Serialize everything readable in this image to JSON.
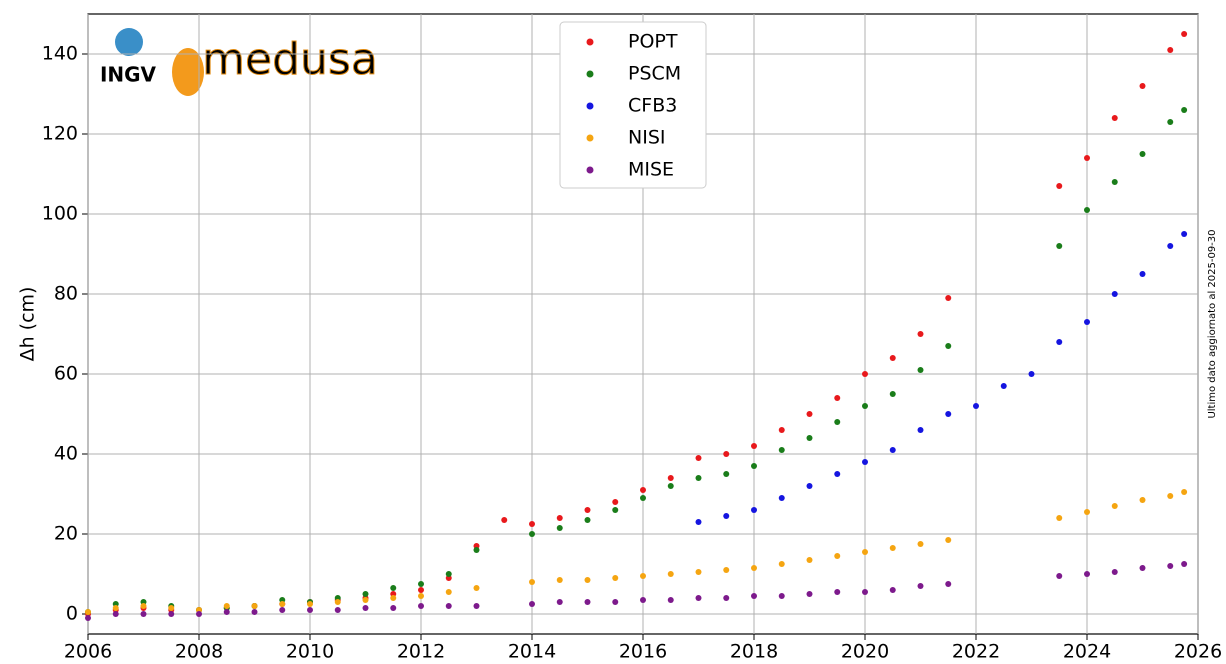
{
  "chart_data": {
    "type": "scatter",
    "ylabel": "Δh (cm)",
    "annotation": "Ultimo dato aggiornato al 2025-09-30",
    "logo_texts": [
      "INGV",
      "medusa"
    ],
    "xlim": [
      2006,
      2026
    ],
    "xticks": [
      2006,
      2008,
      2010,
      2012,
      2014,
      2016,
      2018,
      2020,
      2022,
      2024,
      2026
    ],
    "ylim": [
      -5,
      150
    ],
    "yticks": [
      0,
      20,
      40,
      60,
      80,
      100,
      120,
      140
    ],
    "grid": true,
    "legend": "upper center",
    "x": [
      2006,
      2006.5,
      2007,
      2007.5,
      2008,
      2008.5,
      2009,
      2009.5,
      2010,
      2010.5,
      2011,
      2011.5,
      2012,
      2012.5,
      2013,
      2013.5,
      2014,
      2014.5,
      2015,
      2015.5,
      2016,
      2016.5,
      2017,
      2017.5,
      2018,
      2018.5,
      2019,
      2019.5,
      2020,
      2020.5,
      2021,
      2021.5,
      2022,
      2022.5,
      2023,
      2023.5,
      2024,
      2024.5,
      2025,
      2025.5,
      2025.75
    ],
    "series": [
      {
        "name": "POPT",
        "color": "#e8191c",
        "values": [
          0,
          1,
          1.5,
          1,
          1,
          1.5,
          2,
          2.5,
          3,
          3.5,
          4,
          5,
          6,
          9,
          17,
          23.5,
          22.5,
          24,
          26,
          28,
          31,
          34,
          39,
          40,
          42,
          46,
          50,
          54,
          60,
          64,
          70,
          79,
          null,
          null,
          null,
          107,
          114,
          124,
          132,
          141,
          145
        ]
      },
      {
        "name": "PSCM",
        "color": "#1a7d1a",
        "values": [
          0.5,
          2.5,
          3,
          2,
          1,
          1.5,
          2,
          3.5,
          3,
          4,
          5,
          6.5,
          7.5,
          10,
          16,
          null,
          20,
          21.5,
          23.5,
          26,
          29,
          32,
          34,
          35,
          37,
          41,
          44,
          48,
          52,
          55,
          61,
          67,
          null,
          null,
          null,
          92,
          101,
          108,
          115,
          123,
          126
        ]
      },
      {
        "name": "CFB3",
        "color": "#1515e0",
        "values": [
          null,
          null,
          null,
          null,
          null,
          null,
          null,
          null,
          null,
          null,
          null,
          null,
          null,
          null,
          null,
          null,
          null,
          null,
          null,
          null,
          null,
          null,
          23,
          24.5,
          26,
          29,
          32,
          35,
          38,
          41,
          46,
          50,
          52,
          57,
          60,
          68,
          73,
          80,
          85,
          92,
          95
        ]
      },
      {
        "name": "NISI",
        "color": "#f5a511",
        "values": [
          0.5,
          1.5,
          2,
          1.5,
          1,
          2,
          2,
          2.5,
          2.5,
          3,
          3.5,
          4,
          4.5,
          5.5,
          6.5,
          null,
          8,
          8.5,
          8.5,
          9,
          9.5,
          10,
          10.5,
          11,
          11.5,
          12.5,
          13.5,
          14.5,
          15.5,
          16.5,
          17.5,
          18.5,
          null,
          null,
          null,
          24,
          25.5,
          27,
          28.5,
          29.5,
          30.5
        ]
      },
      {
        "name": "MISE",
        "color": "#7d1a8c",
        "values": [
          -1,
          0,
          0,
          0,
          0,
          0.5,
          0.5,
          1,
          1,
          1,
          1.5,
          1.5,
          2,
          2,
          2,
          null,
          2.5,
          3,
          3,
          3,
          3.5,
          3.5,
          4,
          4,
          4.5,
          4.5,
          5,
          5.5,
          5.5,
          6,
          7,
          7.5,
          null,
          null,
          null,
          9.5,
          10,
          10.5,
          11.5,
          12,
          12.5
        ]
      }
    ]
  }
}
